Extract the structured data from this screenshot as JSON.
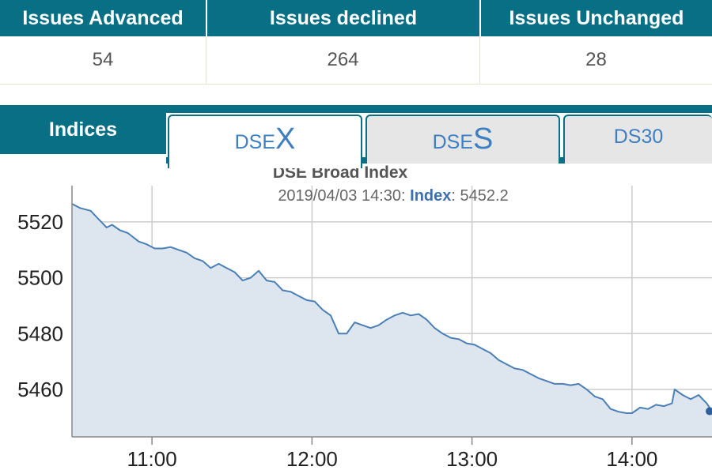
{
  "issues": {
    "headers": [
      "Issues Advanced",
      "Issues declined",
      "Issues Unchanged"
    ],
    "values": [
      "54",
      "264",
      "28"
    ]
  },
  "indices_tabs": {
    "label": "Indices",
    "tabs": [
      {
        "prefix": "DSE",
        "suffix": "X",
        "active": true
      },
      {
        "prefix": "DSE",
        "suffix": "S",
        "active": false
      },
      {
        "label": "DS30",
        "active": false
      }
    ]
  },
  "tooltip": {
    "timestamp": "2019/04/03 14:30:",
    "series_label": "Index",
    "value": "5452.2"
  },
  "colors": {
    "header_bg": "#086f85",
    "line": "#4a7fb5",
    "area_fill": "#dde5ee",
    "tab_text": "#3d7fc1"
  },
  "chart_data": {
    "type": "area",
    "title": "DSE Broad Index",
    "xlabel": "",
    "ylabel": "",
    "x_ticks": [
      "11:00",
      "12:00",
      "13:00",
      "14:00"
    ],
    "y_ticks": [
      5460,
      5480,
      5500,
      5520
    ],
    "xlim": [
      "10:30",
      "14:30"
    ],
    "ylim": [
      5443,
      5533
    ],
    "grid": true,
    "series": [
      {
        "values": [
          [
            "10:30",
            5526.5
          ],
          [
            "10:33",
            5525
          ],
          [
            "10:37",
            5524
          ],
          [
            "10:39",
            5522
          ],
          [
            "10:43",
            5518
          ],
          [
            "10:45",
            5519
          ],
          [
            "10:48",
            5517
          ],
          [
            "10:51",
            5516
          ],
          [
            "10:55",
            5513
          ],
          [
            "10:58",
            5512
          ],
          [
            "11:01",
            5510.5
          ],
          [
            "11:04",
            5510.5
          ],
          [
            "11:07",
            5511
          ],
          [
            "11:10",
            5510
          ],
          [
            "11:13",
            5509
          ],
          [
            "11:16",
            5507
          ],
          [
            "11:19",
            5506
          ],
          [
            "11:22",
            5503.5
          ],
          [
            "11:25",
            5505
          ],
          [
            "11:28",
            5503.5
          ],
          [
            "11:31",
            5502
          ],
          [
            "11:34",
            5499
          ],
          [
            "11:37",
            5500
          ],
          [
            "11:40",
            5502.5
          ],
          [
            "11:43",
            5499
          ],
          [
            "11:46",
            5498.5
          ],
          [
            "11:49",
            5495.5
          ],
          [
            "11:52",
            5495
          ],
          [
            "11:55",
            5493.5
          ],
          [
            "11:58",
            5492
          ],
          [
            "12:01",
            5491.5
          ],
          [
            "12:04",
            5488.5
          ],
          [
            "12:07",
            5486.5
          ],
          [
            "12:10",
            5480
          ],
          [
            "12:13",
            5480
          ],
          [
            "12:16",
            5484
          ],
          [
            "12:19",
            5483
          ],
          [
            "12:22",
            5482
          ],
          [
            "12:25",
            5483
          ],
          [
            "12:28",
            5485
          ],
          [
            "12:31",
            5486.5
          ],
          [
            "12:34",
            5487.5
          ],
          [
            "12:37",
            5486.5
          ],
          [
            "12:40",
            5487
          ],
          [
            "12:43",
            5485
          ],
          [
            "12:46",
            5482
          ],
          [
            "12:49",
            5480
          ],
          [
            "12:52",
            5478.5
          ],
          [
            "12:55",
            5478
          ],
          [
            "12:58",
            5476.5
          ],
          [
            "13:01",
            5476
          ],
          [
            "13:04",
            5474.5
          ],
          [
            "13:07",
            5473
          ],
          [
            "13:10",
            5470.5
          ],
          [
            "13:13",
            5469
          ],
          [
            "13:16",
            5467.5
          ],
          [
            "13:19",
            5467
          ],
          [
            "13:22",
            5465.5
          ],
          [
            "13:25",
            5464
          ],
          [
            "13:28",
            5463
          ],
          [
            "13:31",
            5462
          ],
          [
            "13:34",
            5462
          ],
          [
            "13:37",
            5461.5
          ],
          [
            "13:40",
            5462
          ],
          [
            "13:43",
            5460
          ],
          [
            "13:46",
            5457.5
          ],
          [
            "13:49",
            5456.5
          ],
          [
            "13:52",
            5453
          ],
          [
            "13:55",
            5452
          ],
          [
            "13:58",
            5451.5
          ],
          [
            "14:00",
            5451.5
          ],
          [
            "14:03",
            5453.5
          ],
          [
            "14:06",
            5453
          ],
          [
            "14:09",
            5454.5
          ],
          [
            "14:12",
            5454
          ],
          [
            "14:15",
            5455
          ],
          [
            "14:16",
            5460
          ],
          [
            "14:19",
            5458
          ],
          [
            "14:22",
            5456.5
          ],
          [
            "14:25",
            5458
          ],
          [
            "14:28",
            5455
          ],
          [
            "14:30",
            5452.2
          ]
        ]
      }
    ]
  }
}
